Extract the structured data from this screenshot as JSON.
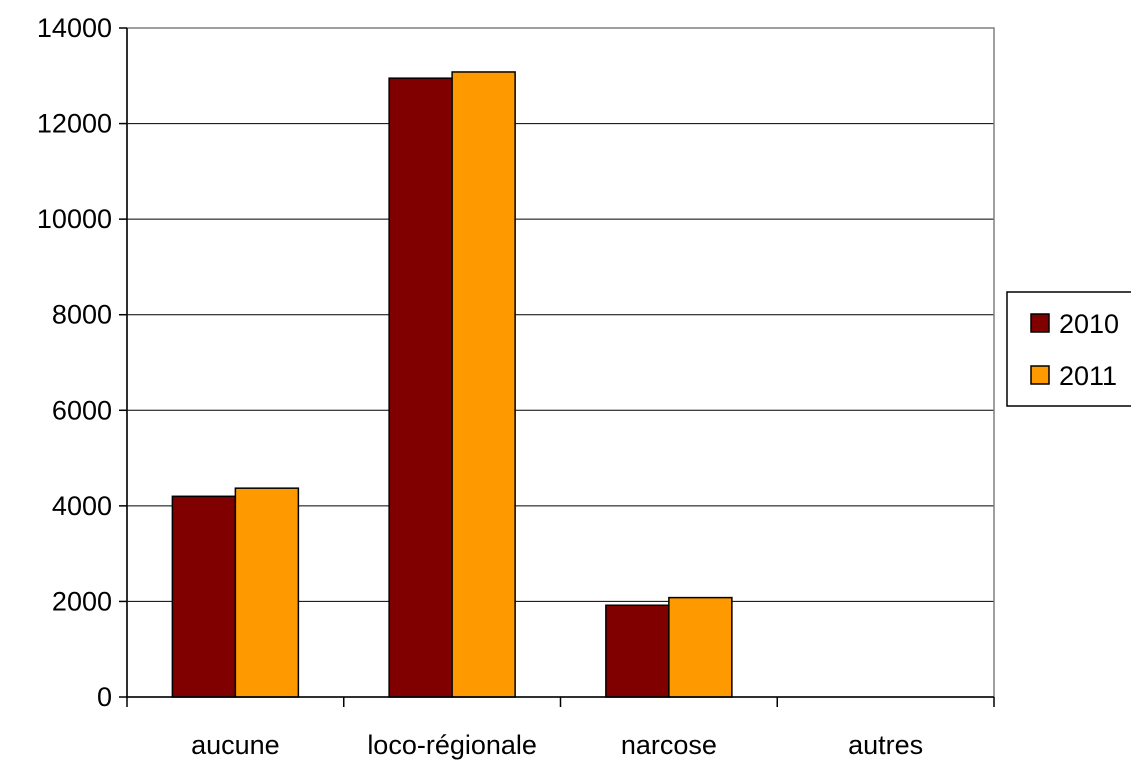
{
  "chart_data": {
    "type": "bar",
    "title": "",
    "xlabel": "",
    "ylabel": "",
    "categories": [
      "aucune",
      "loco-régionale",
      "narcose",
      "autres"
    ],
    "series": [
      {
        "name": "2010",
        "color": "#800000",
        "values": [
          4200,
          12950,
          1920,
          0
        ]
      },
      {
        "name": "2011",
        "color": "#FF9900",
        "values": [
          4370,
          13080,
          2080,
          0
        ]
      }
    ],
    "ylim": [
      0,
      14000
    ],
    "yticks": [
      "0",
      "2000",
      "4000",
      "6000",
      "8000",
      "10000",
      "12000",
      "14000"
    ],
    "grid": true,
    "legend_position": "right"
  }
}
